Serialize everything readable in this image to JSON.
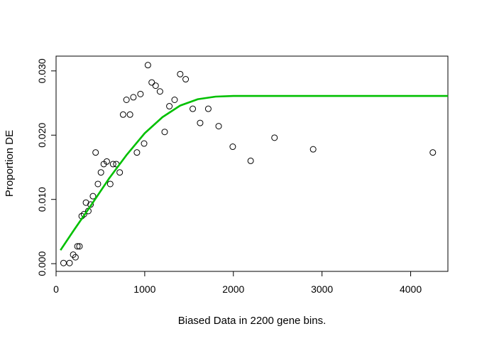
{
  "chart_data": {
    "type": "scatter",
    "title": "",
    "xlabel": "Biased Data in 2200 gene bins.",
    "ylabel": "Proportion DE",
    "xlim": [
      0,
      4420
    ],
    "ylim": [
      -0.0012,
      0.0323
    ],
    "xticks": [
      0,
      1000,
      2000,
      3000,
      4000
    ],
    "xtick_labels": [
      "0",
      "1000",
      "2000",
      "3000",
      "4000"
    ],
    "yticks": [
      0.0,
      0.01,
      0.02,
      0.03
    ],
    "ytick_labels": [
      "0.000",
      "0.010",
      "0.020",
      "0.030"
    ],
    "grid": false,
    "series": [
      {
        "type": "scatter",
        "marker": "open-circle",
        "color": "#000000",
        "points": [
          [
            84,
            0.0001
          ],
          [
            152,
            0.0001
          ],
          [
            193,
            0.0014
          ],
          [
            219,
            0.001
          ],
          [
            241,
            0.0027
          ],
          [
            264,
            0.0027
          ],
          [
            289,
            0.0074
          ],
          [
            315,
            0.0077
          ],
          [
            337,
            0.0095
          ],
          [
            364,
            0.0082
          ],
          [
            389,
            0.0092
          ],
          [
            416,
            0.0105
          ],
          [
            446,
            0.0173
          ],
          [
            472,
            0.0124
          ],
          [
            506,
            0.0142
          ],
          [
            538,
            0.0155
          ],
          [
            572,
            0.0159
          ],
          [
            611,
            0.0124
          ],
          [
            643,
            0.0155
          ],
          [
            679,
            0.0155
          ],
          [
            718,
            0.0142
          ],
          [
            756,
            0.0232
          ],
          [
            794,
            0.0255
          ],
          [
            834,
            0.0232
          ],
          [
            872,
            0.0259
          ],
          [
            912,
            0.0173
          ],
          [
            952,
            0.0264
          ],
          [
            993,
            0.0187
          ],
          [
            1036,
            0.0309
          ],
          [
            1079,
            0.0282
          ],
          [
            1123,
            0.0277
          ],
          [
            1172,
            0.0268
          ],
          [
            1225,
            0.0205
          ],
          [
            1278,
            0.0245
          ],
          [
            1337,
            0.0255
          ],
          [
            1400,
            0.0295
          ],
          [
            1462,
            0.0287
          ],
          [
            1542,
            0.0241
          ],
          [
            1625,
            0.0219
          ],
          [
            1717,
            0.0241
          ],
          [
            1834,
            0.0214
          ],
          [
            1993,
            0.0182
          ],
          [
            2195,
            0.016
          ],
          [
            2464,
            0.0196
          ],
          [
            2900,
            0.0178
          ],
          [
            4250,
            0.0173
          ]
        ]
      },
      {
        "type": "line",
        "color": "#00c000",
        "points": [
          [
            50,
            0.0021
          ],
          [
            200,
            0.0052
          ],
          [
            400,
            0.0092
          ],
          [
            600,
            0.0133
          ],
          [
            800,
            0.017
          ],
          [
            1000,
            0.0203
          ],
          [
            1200,
            0.0228
          ],
          [
            1400,
            0.0246
          ],
          [
            1600,
            0.0256
          ],
          [
            1800,
            0.026
          ],
          [
            2000,
            0.0261
          ],
          [
            2400,
            0.0261
          ],
          [
            3000,
            0.0261
          ],
          [
            3600,
            0.0261
          ],
          [
            4420,
            0.0261
          ]
        ]
      }
    ]
  }
}
